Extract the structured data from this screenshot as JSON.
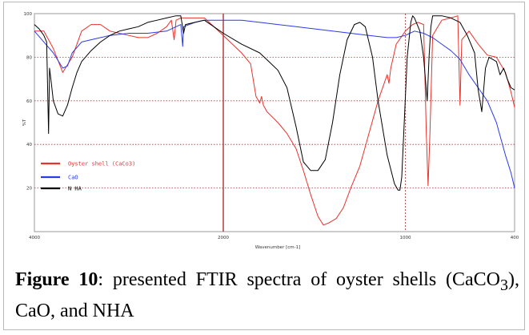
{
  "chart_data": {
    "type": "line",
    "xlabel": "Wavenumber [cm-1]",
    "ylabel": "%T",
    "xlim": [
      4000,
      400
    ],
    "ylim": [
      0,
      100
    ],
    "x_ticks": [
      4000,
      2000,
      1000,
      400
    ],
    "y_ticks": [
      20,
      40,
      60,
      80,
      100
    ],
    "legend_position": "left",
    "grid": "dotted-horizontal",
    "markers": [
      2000,
      1000
    ],
    "series": [
      {
        "name": "Oyster shell (CaCo3)",
        "color": "#e8322c",
        "points": [
          [
            4000,
            92
          ],
          [
            3900,
            92
          ],
          [
            3800,
            84
          ],
          [
            3700,
            73
          ],
          [
            3600,
            80
          ],
          [
            3500,
            92
          ],
          [
            3400,
            95
          ],
          [
            3300,
            95
          ],
          [
            3200,
            92
          ],
          [
            3100,
            91
          ],
          [
            3000,
            90
          ],
          [
            2900,
            89
          ],
          [
            2800,
            89
          ],
          [
            2700,
            91
          ],
          [
            2600,
            94
          ],
          [
            2550,
            97
          ],
          [
            2520,
            88
          ],
          [
            2500,
            97
          ],
          [
            2450,
            98
          ],
          [
            2400,
            98
          ],
          [
            2300,
            98
          ],
          [
            2200,
            98
          ],
          [
            2100,
            94
          ],
          [
            2000,
            90
          ],
          [
            1950,
            86
          ],
          [
            1900,
            82
          ],
          [
            1850,
            77
          ],
          [
            1820,
            62
          ],
          [
            1800,
            59
          ],
          [
            1790,
            62
          ],
          [
            1780,
            58
          ],
          [
            1760,
            55
          ],
          [
            1700,
            50
          ],
          [
            1650,
            45
          ],
          [
            1600,
            38
          ],
          [
            1560,
            28
          ],
          [
            1520,
            17
          ],
          [
            1480,
            7
          ],
          [
            1450,
            3
          ],
          [
            1420,
            4
          ],
          [
            1380,
            6
          ],
          [
            1340,
            11
          ],
          [
            1300,
            20
          ],
          [
            1250,
            30
          ],
          [
            1200,
            45
          ],
          [
            1150,
            60
          ],
          [
            1100,
            72
          ],
          [
            1090,
            68
          ],
          [
            1080,
            75
          ],
          [
            1050,
            86
          ],
          [
            1000,
            92
          ],
          [
            960,
            95
          ],
          [
            930,
            96
          ],
          [
            900,
            95
          ],
          [
            885,
            45
          ],
          [
            875,
            21
          ],
          [
            865,
            45
          ],
          [
            850,
            90
          ],
          [
            800,
            97
          ],
          [
            750,
            98
          ],
          [
            712,
            99
          ],
          [
            700,
            58
          ],
          [
            690,
            88
          ],
          [
            650,
            92
          ],
          [
            600,
            86
          ],
          [
            550,
            81
          ],
          [
            500,
            80
          ],
          [
            450,
            73
          ],
          [
            420,
            64
          ],
          [
            400,
            57
          ]
        ]
      },
      {
        "name": "CaO",
        "color": "#2b3be6",
        "points": [
          [
            4000,
            92
          ],
          [
            3900,
            87
          ],
          [
            3800,
            82
          ],
          [
            3700,
            75
          ],
          [
            3650,
            76
          ],
          [
            3600,
            82
          ],
          [
            3500,
            87
          ],
          [
            3400,
            88
          ],
          [
            3300,
            89
          ],
          [
            3200,
            90
          ],
          [
            3000,
            91
          ],
          [
            2800,
            91
          ],
          [
            2600,
            92
          ],
          [
            2500,
            94
          ],
          [
            2450,
            95
          ],
          [
            2430,
            85
          ],
          [
            2420,
            94
          ],
          [
            2300,
            96
          ],
          [
            2200,
            97
          ],
          [
            2000,
            97
          ],
          [
            1900,
            97
          ],
          [
            1800,
            96
          ],
          [
            1700,
            95
          ],
          [
            1600,
            94
          ],
          [
            1500,
            93
          ],
          [
            1400,
            92
          ],
          [
            1300,
            91
          ],
          [
            1200,
            90
          ],
          [
            1100,
            89
          ],
          [
            1050,
            89
          ],
          [
            1000,
            90
          ],
          [
            950,
            92
          ],
          [
            900,
            91
          ],
          [
            850,
            89
          ],
          [
            800,
            86
          ],
          [
            750,
            83
          ],
          [
            700,
            79
          ],
          [
            650,
            72
          ],
          [
            600,
            66
          ],
          [
            550,
            60
          ],
          [
            500,
            50
          ],
          [
            450,
            35
          ],
          [
            420,
            27
          ],
          [
            400,
            20
          ]
        ]
      },
      {
        "name": "N HA",
        "color": "#000000",
        "points": [
          [
            4000,
            95
          ],
          [
            3950,
            93
          ],
          [
            3900,
            90
          ],
          [
            3870,
            87
          ],
          [
            3850,
            45
          ],
          [
            3840,
            75
          ],
          [
            3820,
            68
          ],
          [
            3800,
            60
          ],
          [
            3750,
            54
          ],
          [
            3700,
            53
          ],
          [
            3650,
            58
          ],
          [
            3600,
            66
          ],
          [
            3550,
            73
          ],
          [
            3500,
            78
          ],
          [
            3400,
            83
          ],
          [
            3300,
            87
          ],
          [
            3200,
            90
          ],
          [
            3100,
            92
          ],
          [
            3000,
            93
          ],
          [
            2900,
            94
          ],
          [
            2800,
            96
          ],
          [
            2700,
            97
          ],
          [
            2600,
            98
          ],
          [
            2500,
            99
          ],
          [
            2450,
            99
          ],
          [
            2420,
            91
          ],
          [
            2400,
            95
          ],
          [
            2300,
            96
          ],
          [
            2200,
            97
          ],
          [
            2100,
            94
          ],
          [
            2000,
            91
          ],
          [
            1900,
            86
          ],
          [
            1800,
            82
          ],
          [
            1750,
            78
          ],
          [
            1700,
            74
          ],
          [
            1650,
            66
          ],
          [
            1600,
            48
          ],
          [
            1560,
            32
          ],
          [
            1520,
            28
          ],
          [
            1480,
            28
          ],
          [
            1440,
            33
          ],
          [
            1400,
            50
          ],
          [
            1360,
            72
          ],
          [
            1320,
            88
          ],
          [
            1280,
            95
          ],
          [
            1250,
            96
          ],
          [
            1220,
            94
          ],
          [
            1180,
            80
          ],
          [
            1150,
            60
          ],
          [
            1100,
            35
          ],
          [
            1060,
            22
          ],
          [
            1040,
            19
          ],
          [
            1030,
            19
          ],
          [
            1020,
            25
          ],
          [
            990,
            80
          ],
          [
            970,
            96
          ],
          [
            960,
            99
          ],
          [
            950,
            98
          ],
          [
            920,
            92
          ],
          [
            900,
            80
          ],
          [
            880,
            60
          ],
          [
            870,
            80
          ],
          [
            860,
            94
          ],
          [
            850,
            99
          ],
          [
            800,
            99
          ],
          [
            750,
            98
          ],
          [
            700,
            96
          ],
          [
            660,
            90
          ],
          [
            620,
            82
          ],
          [
            600,
            65
          ],
          [
            580,
            55
          ],
          [
            560,
            75
          ],
          [
            540,
            80
          ],
          [
            500,
            78
          ],
          [
            480,
            72
          ],
          [
            460,
            75
          ],
          [
            440,
            70
          ],
          [
            420,
            66
          ],
          [
            400,
            65
          ]
        ]
      }
    ]
  },
  "caption": {
    "label": "Figure 10",
    "text": ": presented FTIR spectra of oyster shells (CaCO",
    "subscript": "3",
    "text_end": "), CaO, and NHA"
  }
}
